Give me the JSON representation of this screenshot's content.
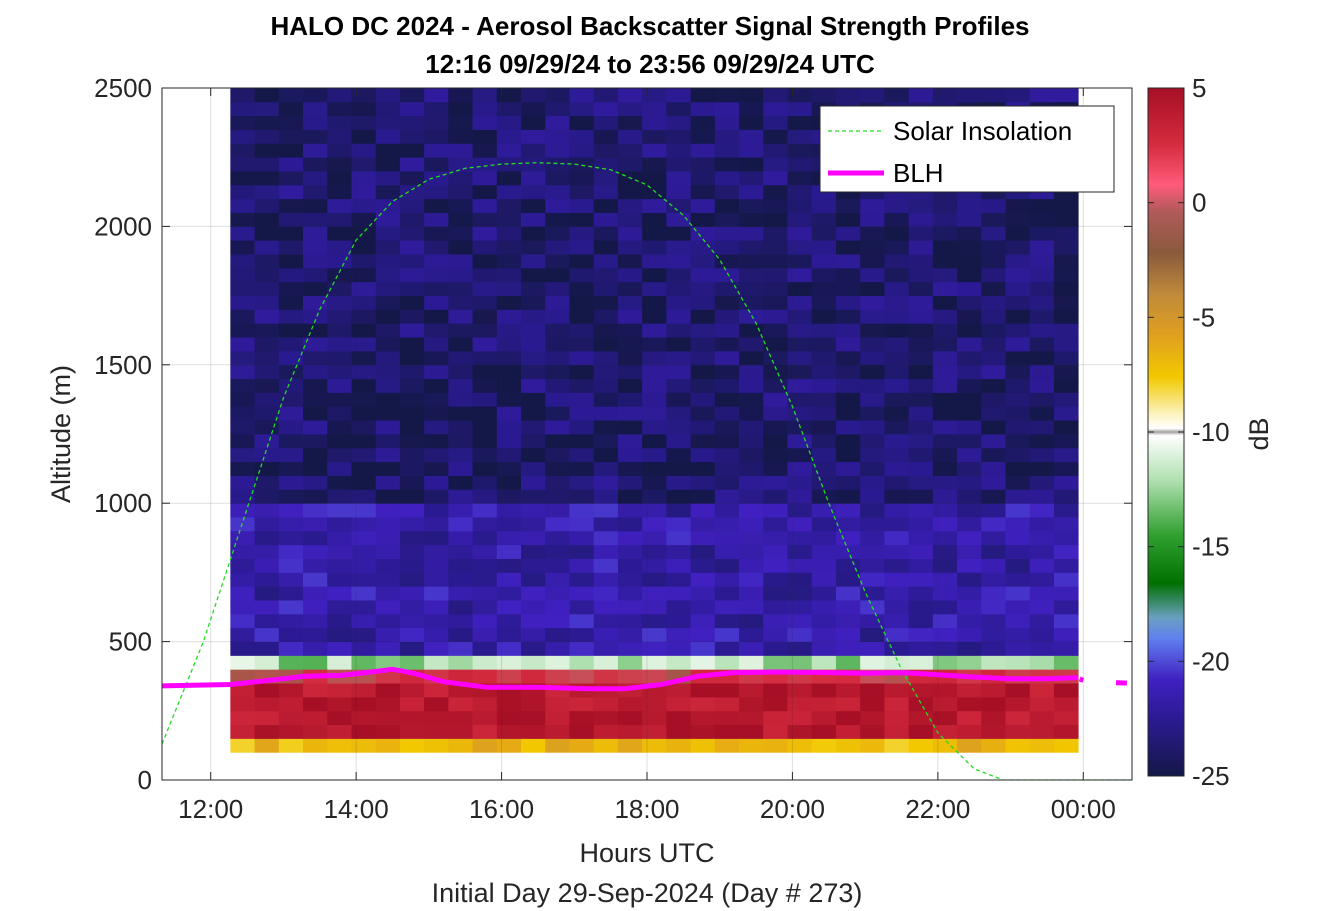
{
  "chart_data": {
    "type": "heatmap",
    "title": "HALO DC 2024 - Aerosol Backscatter Signal Strength Profiles",
    "subtitle": "12:16 09/29/24 to 23:56 09/29/24  UTC",
    "xlabel": "Hours UTC",
    "footer": "Initial Day 29-Sep-2024 (Day # 273)",
    "ylabel": "Altitude (m)",
    "colorbar_label": "dB",
    "xlim": [
      11.33,
      24.67
    ],
    "ylim": [
      0,
      2500
    ],
    "x_ticks": [
      12,
      14,
      16,
      18,
      20,
      22,
      24
    ],
    "x_tick_labels": [
      "12:00",
      "14:00",
      "16:00",
      "18:00",
      "20:00",
      "22:00",
      "00:00"
    ],
    "y_ticks": [
      0,
      500,
      1000,
      1500,
      2000,
      2500
    ],
    "y_tick_labels": [
      "0",
      "500",
      "1000",
      "1500",
      "2000",
      "2500"
    ],
    "clim": [
      -25,
      5
    ],
    "colorbar_ticks": [
      5,
      0,
      -5,
      -10,
      -15,
      -20,
      -25
    ],
    "colorbar_tick_labels": [
      "5",
      "0",
      "-5",
      "-10",
      "-15",
      "-20",
      "-25"
    ],
    "grid": true,
    "legend_position": "top-right",
    "heatmap": {
      "time_start": 12.27,
      "time_end": 23.93,
      "columns": 35,
      "alt_start": 100,
      "alt_end": 2500,
      "row_height": 50,
      "rows": 48,
      "layers": [
        {
          "alt_from": 100,
          "alt_to": 150,
          "db": -6
        },
        {
          "alt_from": 150,
          "alt_to": 350,
          "db": 4
        },
        {
          "alt_from": 350,
          "alt_to": 400,
          "db": 1
        },
        {
          "alt_from": 400,
          "alt_to": 450,
          "db": -12
        },
        {
          "alt_from": 450,
          "alt_to": 1000,
          "db": -22
        },
        {
          "alt_from": 1000,
          "alt_to": 2500,
          "db": -24
        }
      ]
    },
    "series": [
      {
        "name": "Solar Insolation",
        "color": "#22dd22",
        "style": "dashed",
        "x": [
          11.33,
          11.9,
          12.5,
          13.0,
          13.5,
          14.0,
          14.5,
          15.0,
          15.5,
          16.0,
          16.5,
          17.0,
          17.5,
          18.0,
          18.5,
          19.0,
          19.5,
          20.0,
          20.5,
          21.0,
          21.5,
          22.0,
          22.5,
          22.9,
          24.67
        ],
        "y": [
          130,
          500,
          980,
          1380,
          1700,
          1950,
          2090,
          2170,
          2210,
          2225,
          2230,
          2225,
          2205,
          2150,
          2040,
          1880,
          1650,
          1350,
          1000,
          680,
          400,
          170,
          40,
          0,
          0
        ]
      },
      {
        "name": "BLH",
        "color": "#ff00ff",
        "style": "solid",
        "x": [
          11.33,
          12.27,
          12.8,
          13.3,
          13.8,
          14.2,
          14.5,
          14.8,
          15.2,
          15.8,
          16.5,
          17.2,
          17.7,
          18.2,
          18.7,
          19.2,
          19.8,
          20.5,
          21.0,
          21.5,
          22.0,
          22.5,
          23.0,
          23.5,
          23.93
        ],
        "y": [
          340,
          345,
          360,
          375,
          378,
          390,
          400,
          385,
          355,
          335,
          335,
          330,
          330,
          345,
          375,
          388,
          390,
          388,
          386,
          388,
          380,
          372,
          366,
          366,
          370
        ],
        "trailing_segments": [
          [
            23.95,
            24.0,
            365,
            360
          ],
          [
            24.45,
            24.6,
            352,
            350
          ]
        ]
      }
    ]
  }
}
